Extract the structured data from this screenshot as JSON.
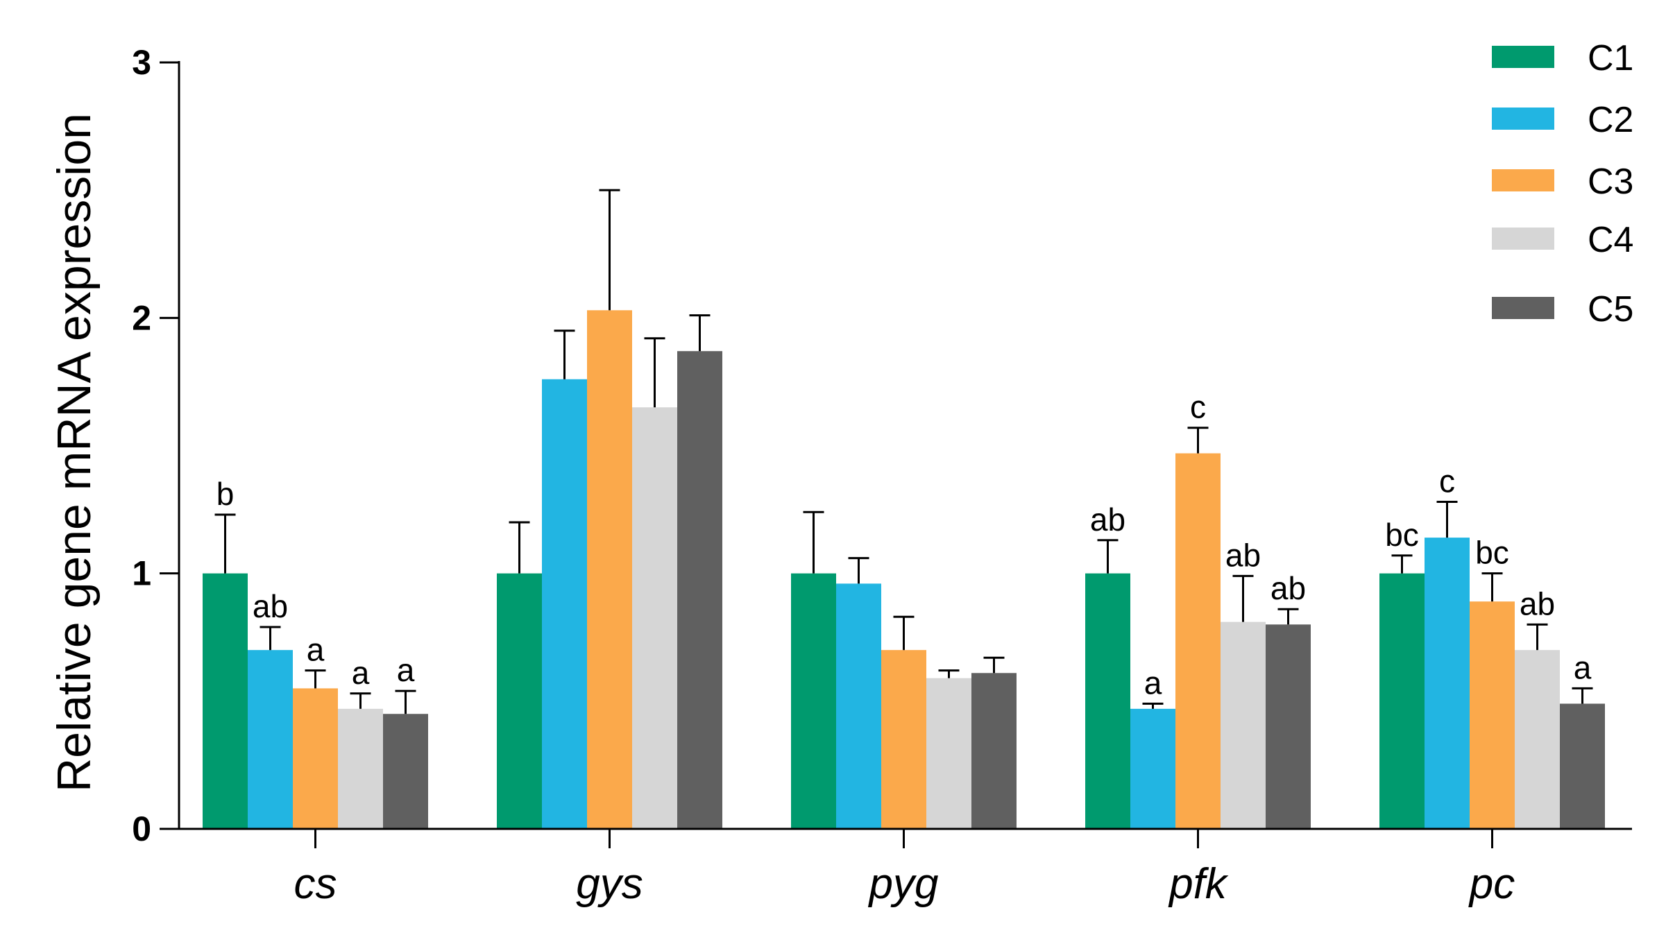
{
  "chart_data": {
    "type": "bar",
    "title": "",
    "xlabel": "",
    "ylabel": "Relative gene mRNA expression",
    "ylim": [
      0,
      3
    ],
    "yticks": [
      0,
      1,
      2,
      3
    ],
    "categories": [
      "cs",
      "gys",
      "pyg",
      "pfk",
      "pc"
    ],
    "grid": false,
    "legend_position": "top-right",
    "series": [
      {
        "name": "C1",
        "color": "#009A6E",
        "values": [
          1.0,
          1.0,
          1.0,
          1.0,
          1.0
        ],
        "errors": [
          0.23,
          0.2,
          0.24,
          0.13,
          0.07
        ],
        "labels": [
          "b",
          "",
          "",
          "ab",
          "bc"
        ]
      },
      {
        "name": "C2",
        "color": "#22B5E2",
        "values": [
          0.7,
          1.76,
          0.96,
          0.47,
          1.14
        ],
        "errors": [
          0.09,
          0.19,
          0.1,
          0.02,
          0.14
        ],
        "labels": [
          "ab",
          "",
          "",
          "a",
          "c"
        ]
      },
      {
        "name": "C3",
        "color": "#FBA94B",
        "values": [
          0.55,
          2.03,
          0.7,
          1.47,
          0.89
        ],
        "errors": [
          0.07,
          0.47,
          0.13,
          0.1,
          0.11
        ],
        "labels": [
          "a",
          "",
          "",
          "c",
          "bc"
        ]
      },
      {
        "name": "C4",
        "color": "#D6D6D6",
        "values": [
          0.47,
          1.65,
          0.59,
          0.81,
          0.7
        ],
        "errors": [
          0.06,
          0.27,
          0.03,
          0.18,
          0.1
        ],
        "labels": [
          "a",
          "",
          "",
          "ab",
          "ab"
        ]
      },
      {
        "name": "C5",
        "color": "#606060",
        "values": [
          0.45,
          1.87,
          0.61,
          0.8,
          0.49
        ],
        "errors": [
          0.09,
          0.14,
          0.06,
          0.06,
          0.06
        ],
        "labels": [
          "a",
          "",
          "",
          "ab",
          "a"
        ]
      }
    ]
  }
}
